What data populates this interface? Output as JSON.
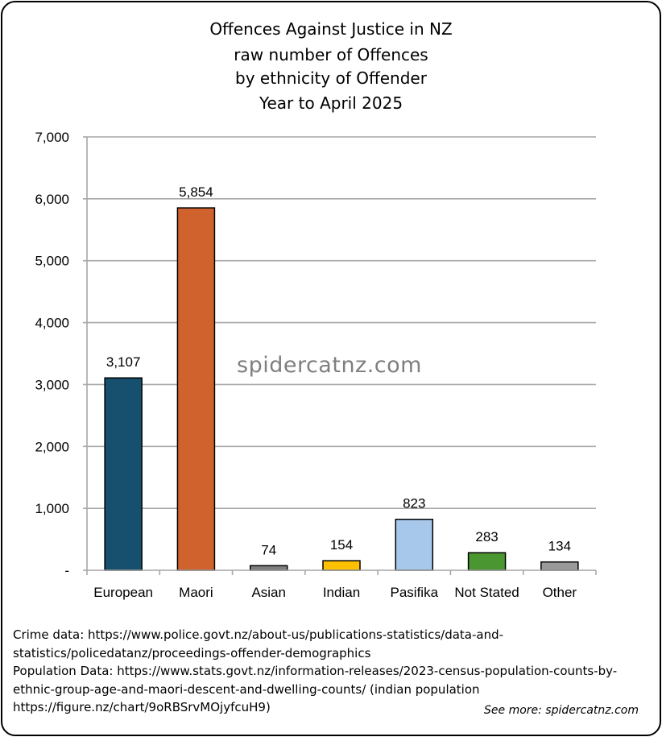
{
  "chart_data": {
    "type": "bar",
    "title_lines": [
      "Offences Against Justice in NZ",
      "raw number of Offences",
      "by ethnicity of Offender",
      "Year to April 2025"
    ],
    "categories": [
      "European",
      "Maori",
      "Asian",
      "Indian",
      "Pasifika",
      "Not Stated",
      "Other"
    ],
    "values": [
      3107,
      5854,
      74,
      154,
      823,
      283,
      134
    ],
    "data_labels": [
      "3,107",
      "5,854",
      "74",
      "154",
      "823",
      "283",
      "134"
    ],
    "colors": [
      "#174f6f",
      "#d0622e",
      "#7f7f7f",
      "#ffc000",
      "#a7c8ea",
      "#4a9630",
      "#9a9a9a"
    ],
    "ylim": [
      0,
      7000
    ],
    "yticks": [
      0,
      1000,
      2000,
      3000,
      4000,
      5000,
      6000,
      7000
    ],
    "ytick_labels": [
      "-",
      "1,000",
      "2,000",
      "3,000",
      "4,000",
      "5,000",
      "6,000",
      "7,000"
    ],
    "grid": true,
    "xlabel": "",
    "ylabel": ""
  },
  "watermark": "spidercatnz.com",
  "source_lines": [
    "Crime data: https://www.police.govt.nz/about-us/publications-statistics/data-and-",
    "statistics/policedatanz/proceedings-offender-demographics",
    "Population Data: https://www.stats.govt.nz/information-releases/2023-census-population-counts-by-",
    "ethnic-group-age-and-maori-descent-and-dwelling-counts/ (indian population",
    "https://figure.nz/chart/9oRBSrvMOjyfcuH9)"
  ],
  "see_more": "See more: spidercatnz.com"
}
